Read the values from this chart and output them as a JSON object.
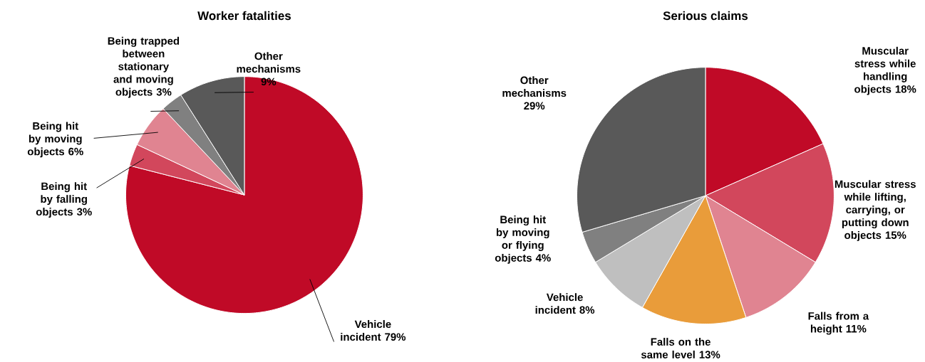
{
  "chart_data": [
    {
      "type": "pie",
      "title": "Worker fatalities",
      "categories": [
        "Vehicle incident",
        "Being hit by falling objects",
        "Being hit by moving objects",
        "Being trapped between stationary and moving objects",
        "Other mechanisms"
      ],
      "values": [
        79,
        3,
        6,
        3,
        9
      ],
      "value_labels": [
        "79%",
        "3%",
        "6%",
        "3%",
        "9%"
      ],
      "colors": [
        "#c00a27",
        "#d2475c",
        "#e08491",
        "#808080",
        "#595959"
      ]
    },
    {
      "type": "pie",
      "title": "Serious claims",
      "categories": [
        "Muscular stress while handling objects",
        "Muscular stress while lifting, carrying, or putting down objects",
        "Falls from a height",
        "Falls on the same level",
        "Vehicle incident",
        "Being hit by moving or flying objects",
        "Other mechanisms"
      ],
      "values": [
        18,
        15,
        11,
        13,
        8,
        4,
        29
      ],
      "value_labels": [
        "18%",
        "15%",
        "11%",
        "13%",
        "8%",
        "4%",
        "29%"
      ],
      "colors": [
        "#c00a27",
        "#d2475c",
        "#e08491",
        "#e99c3a",
        "#bfbfbf",
        "#808080",
        "#595959"
      ]
    }
  ]
}
